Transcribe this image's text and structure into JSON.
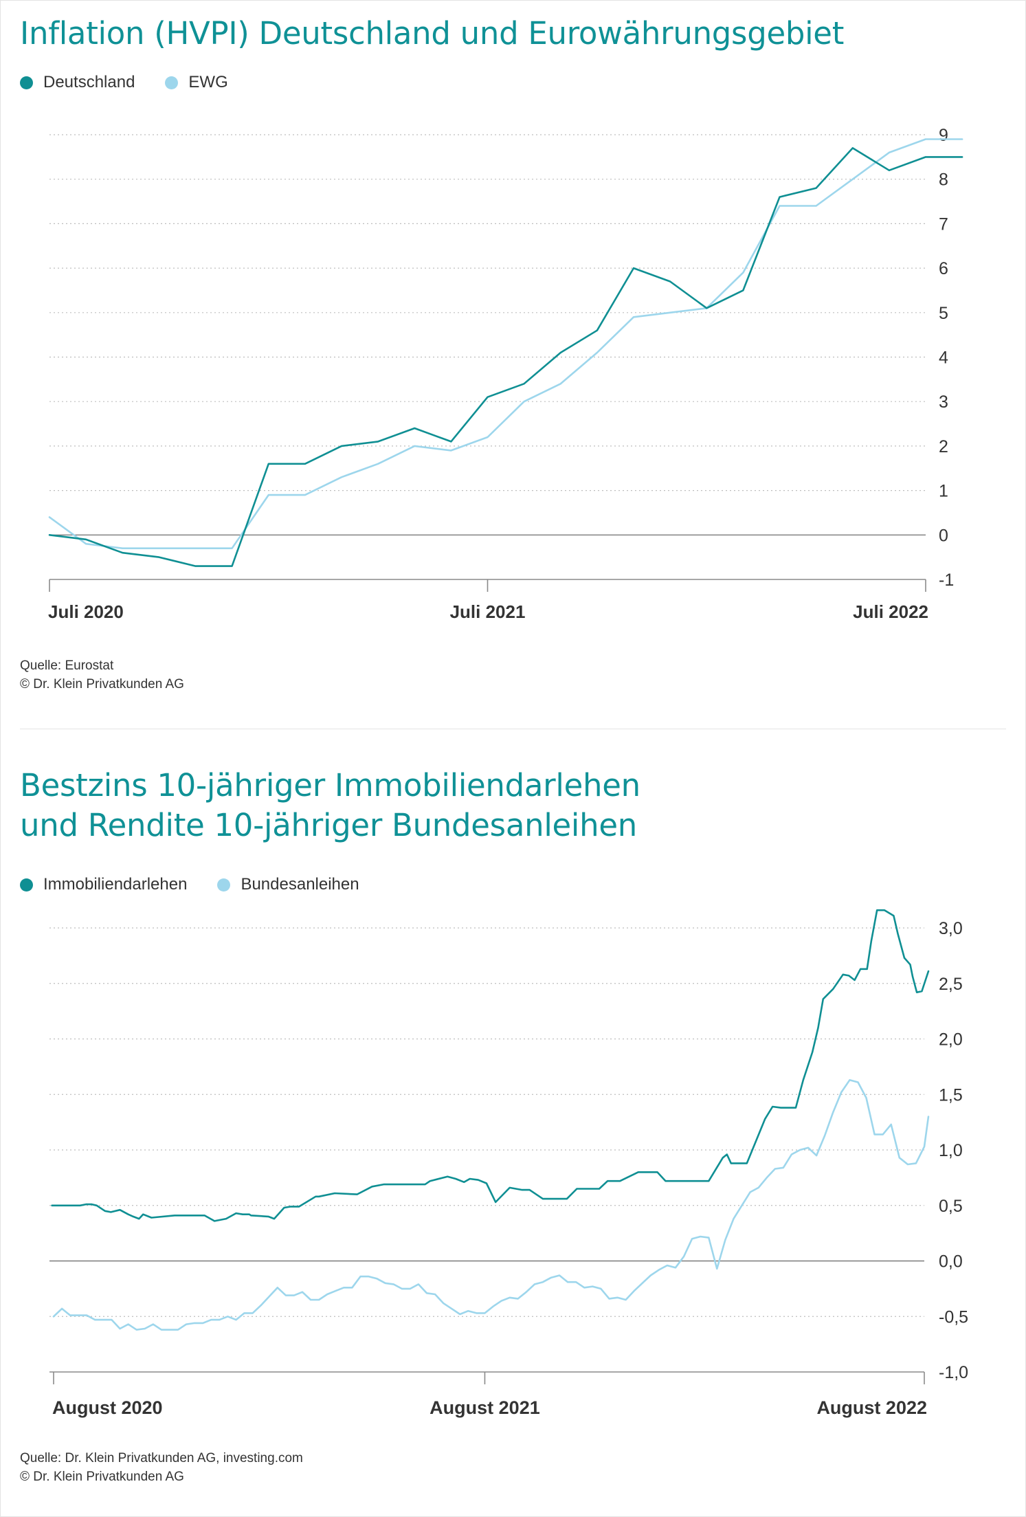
{
  "charts": [
    {
      "title": "Inflation (HVPI) Deutschland und Eurowährungsgebiet",
      "legend": [
        {
          "label": "Deutschland",
          "color": "#0f8f93"
        },
        {
          "label": "EWG",
          "color": "#9dd6ec"
        }
      ],
      "source_lines": [
        "Quelle: Eurostat",
        "© Dr. Klein Privatkunden AG"
      ]
    },
    {
      "title_lines": [
        "Bestzins 10-jähriger Immobiliendarlehen",
        "und Rendite 10-jähriger Bundesanleihen"
      ],
      "legend": [
        {
          "label": "Immobiliendarlehen",
          "color": "#0f8f93"
        },
        {
          "label": "Bundesanleihen",
          "color": "#9dd6ec"
        }
      ],
      "source_lines": [
        "Quelle: Dr. Klein Privatkunden AG, investing.com",
        "© Dr. Klein Privatkunden AG"
      ]
    }
  ],
  "chart_data": [
    {
      "type": "line",
      "title": "Inflation (HVPI) Deutschland und Eurowährungsgebiet",
      "x_unit": "month",
      "x_start": "2020-07",
      "x_range": [
        "2020-07",
        "2022-07"
      ],
      "x_ticks": [
        {
          "pos": "2020-07",
          "label": "Juli 2020"
        },
        {
          "pos": "2021-07",
          "label": "Juli 2021"
        },
        {
          "pos": "2022-07",
          "label": "Juli 2022"
        }
      ],
      "y_ticks": [
        {
          "value": 9,
          "label": "9"
        },
        {
          "value": 8,
          "label": "8"
        },
        {
          "value": 7,
          "label": "7"
        },
        {
          "value": 6,
          "label": "6"
        },
        {
          "value": 5,
          "label": "5"
        },
        {
          "value": 4,
          "label": "4"
        },
        {
          "value": 3,
          "label": "3"
        },
        {
          "value": 2,
          "label": "2"
        },
        {
          "value": 1,
          "label": "1"
        },
        {
          "value": 0,
          "label": "0"
        },
        {
          "value": -1,
          "label": "-1"
        }
      ],
      "ylim": [
        -1,
        9
      ],
      "grid": true,
      "legend_position": "top-left",
      "zero_line": true,
      "series": [
        {
          "name": "Deutschland",
          "color": "#0f8f93",
          "values": [
            0.0,
            -0.1,
            -0.4,
            -0.5,
            -0.7,
            -0.7,
            1.6,
            1.6,
            2.0,
            2.1,
            2.4,
            2.1,
            3.1,
            3.4,
            4.1,
            4.6,
            6.0,
            5.7,
            5.1,
            5.5,
            7.6,
            7.8,
            8.7,
            8.2,
            8.5,
            8.5
          ]
        },
        {
          "name": "EWG",
          "color": "#9dd6ec",
          "values": [
            0.4,
            -0.2,
            -0.3,
            -0.3,
            -0.3,
            -0.3,
            0.9,
            0.9,
            1.3,
            1.6,
            2.0,
            1.9,
            2.2,
            3.0,
            3.4,
            4.1,
            4.9,
            5.0,
            5.1,
            5.9,
            7.4,
            7.4,
            8.0,
            8.6,
            8.9,
            8.9
          ]
        }
      ]
    },
    {
      "type": "line",
      "title": "Bestzins 10-jähriger Immobiliendarlehen und Rendite 10-jähriger Bundesanleihen",
      "x_unit": "week",
      "x_range": [
        "2020-08",
        "2022-08"
      ],
      "x_ticks": [
        {
          "pos": 0,
          "label": "August 2020"
        },
        {
          "pos": 52,
          "label": "August 2021"
        },
        {
          "pos": 105,
          "label": "August 2022"
        }
      ],
      "y_ticks": [
        {
          "value": 3.0,
          "label": "3,0"
        },
        {
          "value": 2.5,
          "label": "2,5"
        },
        {
          "value": 2.0,
          "label": "2,0"
        },
        {
          "value": 1.5,
          "label": "1,5"
        },
        {
          "value": 1.0,
          "label": "1,0"
        },
        {
          "value": 0.5,
          "label": "0,5"
        },
        {
          "value": 0.0,
          "label": "0,0"
        },
        {
          "value": -0.5,
          "label": "-0,5"
        },
        {
          "value": -1.0,
          "label": "-1,0"
        }
      ],
      "ylim": [
        -1.0,
        3.0
      ],
      "grid": true,
      "legend_position": "top-left",
      "zero_line": true,
      "series": [
        {
          "name": "Immobiliendarlehen",
          "color": "#0f8f93",
          "x": [
            -0.2,
            2.6,
            3.2,
            3.9,
            4.6,
            5.2,
            6.2,
            6.9,
            8.0,
            9.0,
            9.6,
            10.3,
            10.8,
            11.8,
            14.6,
            15.6,
            16.6,
            17.2,
            18.2,
            19.4,
            20.8,
            22.0,
            22.8,
            23.6,
            23.8,
            25.9,
            26.6,
            27.8,
            28.6,
            29.6,
            31.6,
            32.0,
            33.9,
            36.6,
            38.4,
            39.8,
            40.6,
            41.4,
            42.0,
            42.8,
            43.9,
            44.8,
            45.4,
            47.5,
            48.5,
            49.5,
            50.2,
            51.2,
            52.2,
            53.3,
            55.0,
            56.5,
            57.4,
            59.0,
            59.6,
            60.4,
            61.9,
            63.1,
            64.0,
            65.8,
            66.8,
            68.3,
            70.5,
            71.6,
            72.8,
            73.8,
            74.8,
            76.9,
            78.4,
            79.0,
            80.7,
            81.2,
            81.7,
            82.6,
            83.6,
            85.8,
            86.7,
            87.7,
            88.6,
            89.5,
            90.4,
            91.5,
            92.2,
            92.8,
            94.0,
            95.2,
            95.9,
            96.6,
            97.3,
            98.1,
            98.6,
            99.3,
            100.2,
            101.3,
            101.8,
            102.6,
            103.3,
            103.6,
            104.1,
            104.7,
            105.5
          ],
          "values": [
            0.5,
            0.5,
            0.5,
            0.51,
            0.51,
            0.5,
            0.45,
            0.44,
            0.46,
            0.42,
            0.4,
            0.38,
            0.42,
            0.39,
            0.41,
            0.41,
            0.41,
            0.41,
            0.41,
            0.36,
            0.38,
            0.43,
            0.42,
            0.42,
            0.41,
            0.4,
            0.38,
            0.48,
            0.49,
            0.49,
            0.58,
            0.58,
            0.61,
            0.6,
            0.67,
            0.69,
            0.69,
            0.69,
            0.69,
            0.69,
            0.69,
            0.69,
            0.72,
            0.76,
            0.74,
            0.71,
            0.74,
            0.73,
            0.7,
            0.53,
            0.66,
            0.64,
            0.64,
            0.56,
            0.56,
            0.56,
            0.56,
            0.65,
            0.65,
            0.65,
            0.72,
            0.72,
            0.8,
            0.8,
            0.8,
            0.72,
            0.72,
            0.72,
            0.72,
            0.72,
            0.93,
            0.96,
            0.88,
            0.88,
            0.88,
            1.28,
            1.39,
            1.38,
            1.38,
            1.38,
            1.63,
            1.88,
            2.1,
            2.36,
            2.45,
            2.58,
            2.57,
            2.53,
            2.63,
            2.63,
            2.88,
            3.16,
            3.16,
            3.11,
            2.95,
            2.73,
            2.67,
            2.56,
            2.42,
            2.43,
            2.61
          ]
        },
        {
          "name": "Bundesanleihen",
          "color": "#9dd6ec",
          "x": [
            0.0,
            1.0,
            2.0,
            3.0,
            4.0,
            5.0,
            6.0,
            7.0,
            8.0,
            9.0,
            10.0,
            11.0,
            12.0,
            13.0,
            14.0,
            15.0,
            16.0,
            17.0,
            18.0,
            19.0,
            20.0,
            21.0,
            22.0,
            23.0,
            24.0,
            25.0,
            26.0,
            27.0,
            28.0,
            29.0,
            30.0,
            31.0,
            32.0,
            33.0,
            34.0,
            35.0,
            36.0,
            37.0,
            38.0,
            39.0,
            40.0,
            41.0,
            42.0,
            43.0,
            44.0,
            45.0,
            46.0,
            47.0,
            48.0,
            49.0,
            50.0,
            51.0,
            52.0,
            53.0,
            54.0,
            55.0,
            56.0,
            57.0,
            58.0,
            59.0,
            60.0,
            61.0,
            62.0,
            63.0,
            64.0,
            65.0,
            66.0,
            67.0,
            68.0,
            69.0,
            70.0,
            71.0,
            72.0,
            73.0,
            74.0,
            75.0,
            76.0,
            77.0,
            78.0,
            79.0,
            80.0,
            81.0,
            82.0,
            83.0,
            84.0,
            85.0,
            86.0,
            87.0,
            88.0,
            89.0,
            90.0,
            91.0,
            92.0,
            93.0,
            94.0,
            95.0,
            96.0,
            97.0,
            98.0,
            99.0,
            100.0,
            101.0,
            102.0,
            103.0,
            104.0,
            105.0,
            105.5
          ],
          "values": [
            -0.5,
            -0.43,
            -0.49,
            -0.49,
            -0.49,
            -0.53,
            -0.53,
            -0.53,
            -0.61,
            -0.57,
            -0.62,
            -0.61,
            -0.57,
            -0.62,
            -0.62,
            -0.62,
            -0.57,
            -0.56,
            -0.56,
            -0.53,
            -0.53,
            -0.5,
            -0.53,
            -0.47,
            -0.47,
            -0.4,
            -0.32,
            -0.24,
            -0.31,
            -0.31,
            -0.28,
            -0.35,
            -0.35,
            -0.3,
            -0.27,
            -0.24,
            -0.24,
            -0.14,
            -0.14,
            -0.16,
            -0.2,
            -0.21,
            -0.25,
            -0.25,
            -0.21,
            -0.29,
            -0.3,
            -0.38,
            -0.43,
            -0.48,
            -0.45,
            -0.47,
            -0.47,
            -0.41,
            -0.36,
            -0.33,
            -0.34,
            -0.28,
            -0.21,
            -0.19,
            -0.15,
            -0.13,
            -0.19,
            -0.19,
            -0.24,
            -0.23,
            -0.25,
            -0.34,
            -0.33,
            -0.35,
            -0.27,
            -0.2,
            -0.13,
            -0.08,
            -0.04,
            -0.06,
            0.04,
            0.2,
            0.22,
            0.21,
            -0.07,
            0.19,
            0.38,
            0.5,
            0.62,
            0.66,
            0.75,
            0.83,
            0.84,
            0.96,
            1.0,
            1.02,
            0.95,
            1.13,
            1.34,
            1.52,
            1.63,
            1.61,
            1.47,
            1.14,
            1.14,
            1.23,
            0.93,
            0.87,
            0.88,
            1.03,
            1.3
          ]
        }
      ]
    }
  ]
}
